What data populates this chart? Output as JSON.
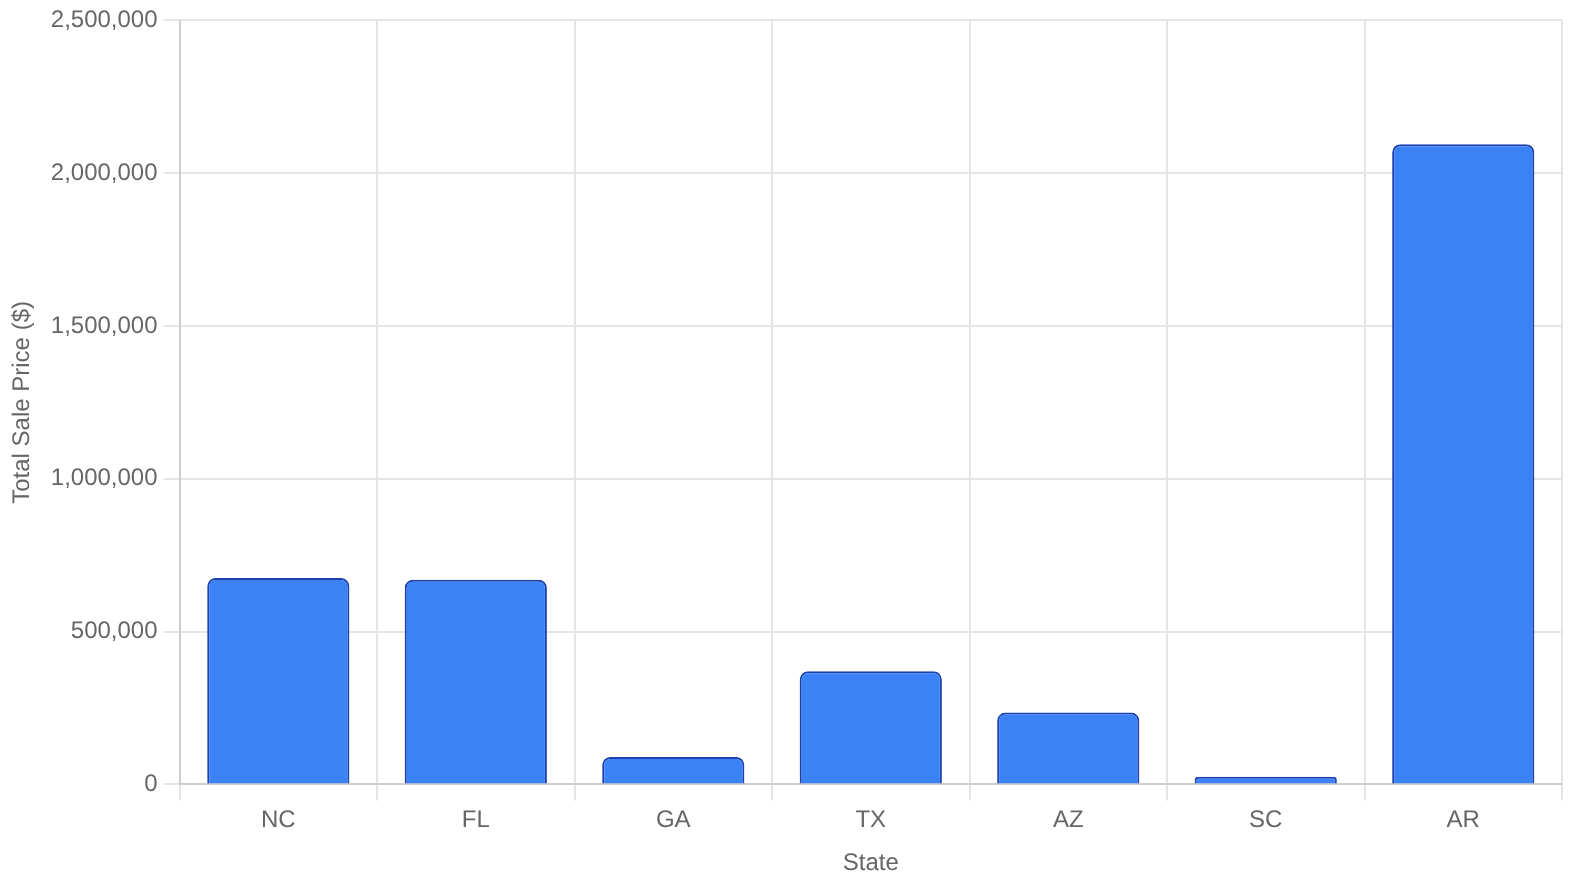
{
  "chart_data": {
    "type": "bar",
    "xlabel": "State",
    "ylabel": "Total Sale Price ($)",
    "categories": [
      "NC",
      "FL",
      "GA",
      "TX",
      "AZ",
      "SC",
      "AR"
    ],
    "values": [
      675000,
      670000,
      90000,
      370000,
      235000,
      25000,
      2095000
    ],
    "color": "#3b82f6",
    "ylim": [
      0,
      2500000
    ],
    "yticks": [
      {
        "value": 0,
        "label": "0"
      },
      {
        "value": 500000,
        "label": "500,000"
      },
      {
        "value": 1000000,
        "label": "1,000,000"
      },
      {
        "value": 1500000,
        "label": "1,500,000"
      },
      {
        "value": 2000000,
        "label": "2,000,000"
      },
      {
        "value": 2500000,
        "label": "2,500,000"
      }
    ],
    "grid": true,
    "legend": false
  }
}
